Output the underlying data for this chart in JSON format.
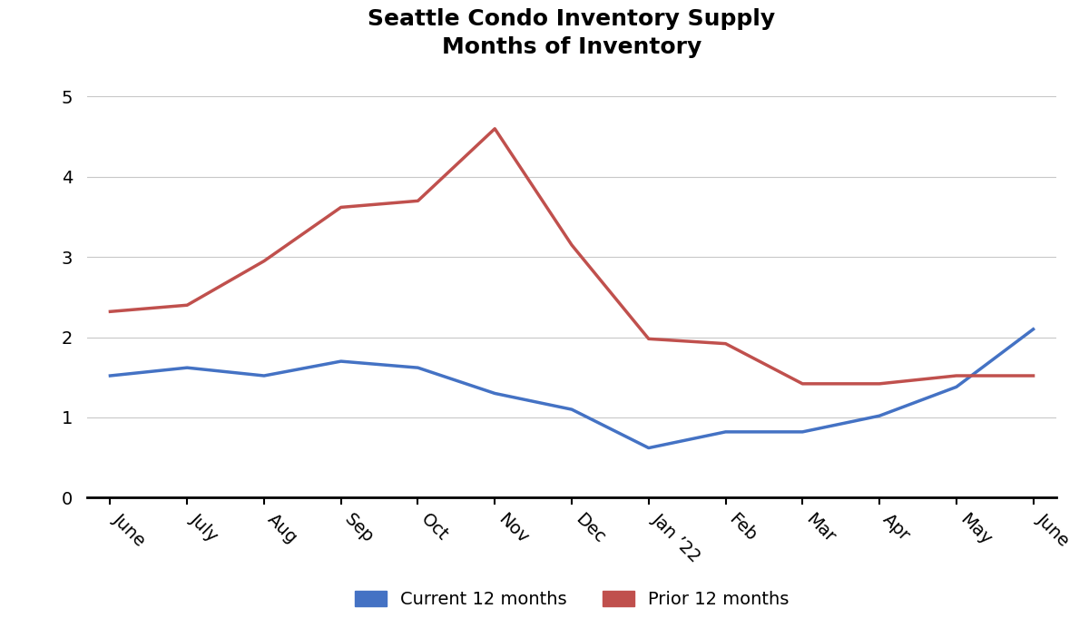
{
  "title_line1": "Seattle Condo Inventory Supply",
  "title_line2": "Months of Inventory",
  "categories": [
    "June",
    "July",
    "Aug",
    "Sep",
    "Oct",
    "Nov",
    "Dec",
    "Jan ’22",
    "Feb",
    "Mar",
    "Apr",
    "May",
    "June"
  ],
  "current_12months": [
    1.52,
    1.62,
    1.52,
    1.7,
    1.62,
    1.3,
    1.1,
    0.62,
    0.82,
    0.82,
    1.02,
    1.38,
    2.1
  ],
  "prior_12months": [
    2.32,
    2.4,
    2.95,
    3.62,
    3.7,
    4.6,
    3.15,
    1.98,
    1.92,
    1.42,
    1.42,
    1.52,
    1.52
  ],
  "current_color": "#4472C4",
  "prior_color": "#C0504D",
  "line_width": 2.5,
  "ylim": [
    0,
    5.25
  ],
  "yticks": [
    0,
    1,
    2,
    3,
    4,
    5
  ],
  "legend_labels": [
    "Current 12 months",
    "Prior 12 months"
  ],
  "background_color": "#ffffff",
  "grid_color": "#c8c8c8",
  "title_fontsize": 18,
  "tick_fontsize": 14,
  "legend_fontsize": 14
}
